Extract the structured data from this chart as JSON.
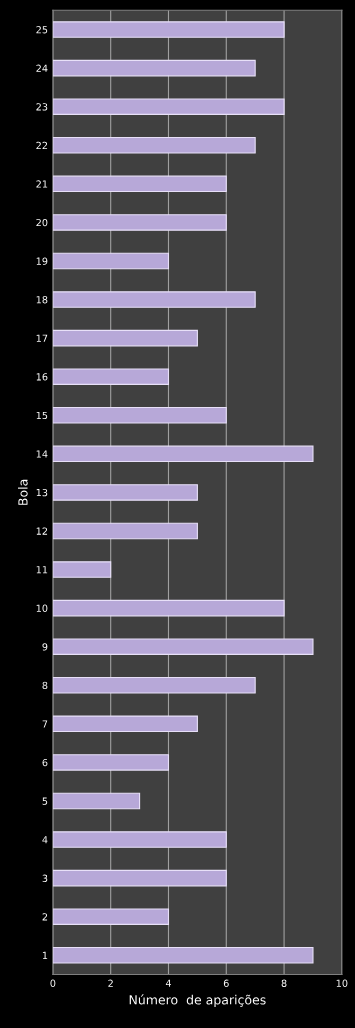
{
  "chart_data": {
    "type": "bar",
    "orientation": "horizontal",
    "xlabel": "Número  de aparições",
    "ylabel": "Bola",
    "categories": [
      "25",
      "24",
      "23",
      "22",
      "21",
      "20",
      "19",
      "18",
      "17",
      "16",
      "15",
      "14",
      "13",
      "12",
      "11",
      "10",
      "9",
      "8",
      "7",
      "6",
      "5",
      "4",
      "3",
      "2",
      "1"
    ],
    "values": [
      8,
      7,
      8,
      7,
      6,
      6,
      4,
      7,
      5,
      4,
      6,
      9,
      5,
      5,
      2,
      8,
      9,
      7,
      5,
      4,
      3,
      6,
      6,
      4,
      9
    ],
    "color": "#b7a8d8",
    "xlim": [
      0,
      10
    ],
    "xticks": [
      0,
      2,
      4,
      6,
      8,
      10
    ],
    "grid": "x"
  }
}
